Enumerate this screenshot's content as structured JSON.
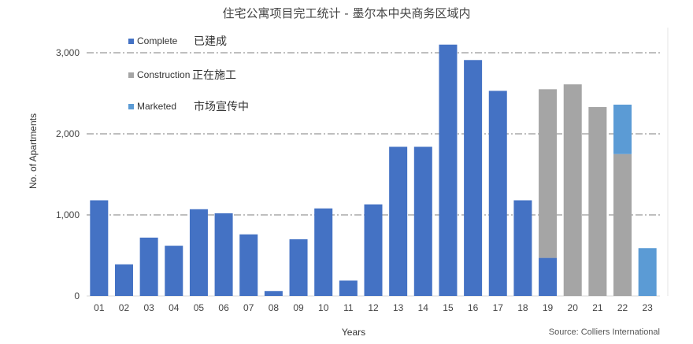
{
  "chart_data": {
    "type": "bar",
    "stacked": true,
    "title": "住宅公寓项目完工统计 - 墨尔本中央商务区域内",
    "xlabel": "Years",
    "ylabel": "No. of Apartments",
    "ylim": [
      0,
      3300
    ],
    "yticks": [
      0,
      1000,
      2000,
      3000
    ],
    "ytick_labels": [
      "0",
      "1,000",
      "2,000",
      "3,000"
    ],
    "grid": true,
    "legend_position": "top-left",
    "categories": [
      "01",
      "02",
      "03",
      "04",
      "05",
      "06",
      "07",
      "08",
      "09",
      "10",
      "11",
      "12",
      "13",
      "14",
      "15",
      "16",
      "17",
      "18",
      "19",
      "20",
      "21",
      "22",
      "23"
    ],
    "series": [
      {
        "name": "Complete",
        "name_cn": "已建成",
        "color": "#4472c4",
        "values": [
          1180,
          390,
          720,
          620,
          1070,
          1020,
          760,
          60,
          700,
          1080,
          190,
          1130,
          1840,
          1840,
          3100,
          2910,
          2530,
          1180,
          470,
          0,
          0,
          0,
          0
        ]
      },
      {
        "name": "Construction",
        "name_cn": "正在施工",
        "color": "#a5a5a5",
        "values": [
          0,
          0,
          0,
          0,
          0,
          0,
          0,
          0,
          0,
          0,
          0,
          0,
          0,
          0,
          0,
          0,
          0,
          0,
          2080,
          2610,
          2330,
          1750,
          0
        ]
      },
      {
        "name": "Marketed",
        "name_cn": "市场宣传中",
        "color": "#5b9bd5",
        "values": [
          0,
          0,
          0,
          0,
          0,
          0,
          0,
          0,
          0,
          0,
          0,
          0,
          0,
          0,
          0,
          0,
          0,
          0,
          0,
          0,
          0,
          610,
          590
        ]
      }
    ],
    "source": "Source: Colliers International"
  }
}
